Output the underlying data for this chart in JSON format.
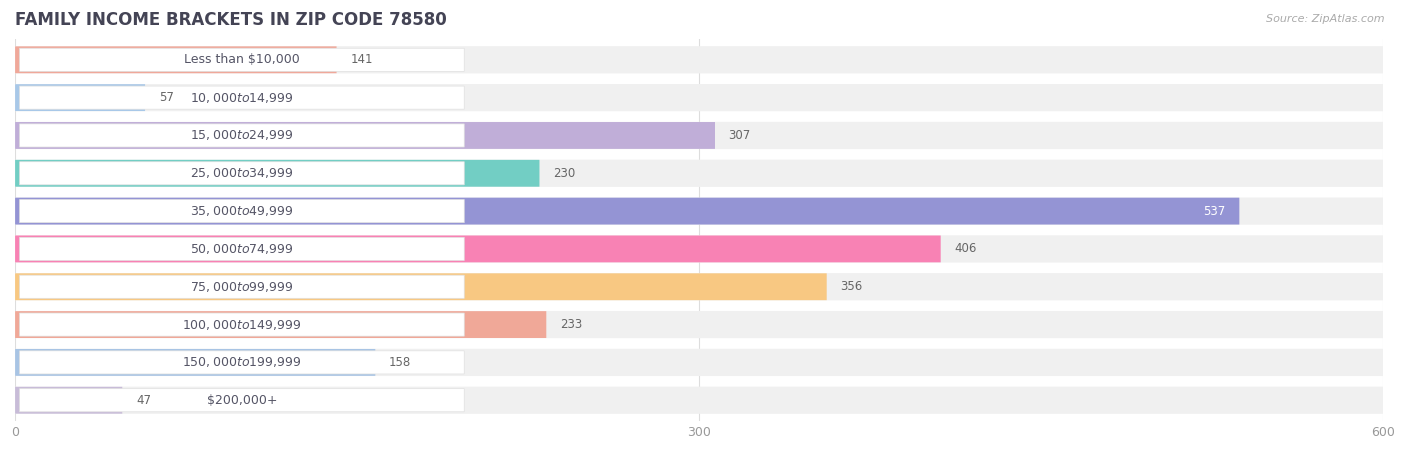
{
  "title": "FAMILY INCOME BRACKETS IN ZIP CODE 78580",
  "source": "Source: ZipAtlas.com",
  "categories": [
    "Less than $10,000",
    "$10,000 to $14,999",
    "$15,000 to $24,999",
    "$25,000 to $34,999",
    "$35,000 to $49,999",
    "$50,000 to $74,999",
    "$75,000 to $99,999",
    "$100,000 to $149,999",
    "$150,000 to $199,999",
    "$200,000+"
  ],
  "values": [
    141,
    57,
    307,
    230,
    537,
    406,
    356,
    233,
    158,
    47
  ],
  "bar_colors": [
    "#f0a89a",
    "#a8c8e8",
    "#c0aed8",
    "#72cec4",
    "#9494d4",
    "#f882b4",
    "#f8c882",
    "#f0a898",
    "#a8c4e4",
    "#c8bcd8"
  ],
  "xlim": [
    0,
    600
  ],
  "xticks": [
    0,
    300,
    600
  ],
  "background_color": "#ffffff",
  "row_bg_color": "#f0f0f0",
  "title_fontsize": 12,
  "label_fontsize": 9,
  "value_fontsize": 8.5,
  "value_threshold_inside": 490
}
